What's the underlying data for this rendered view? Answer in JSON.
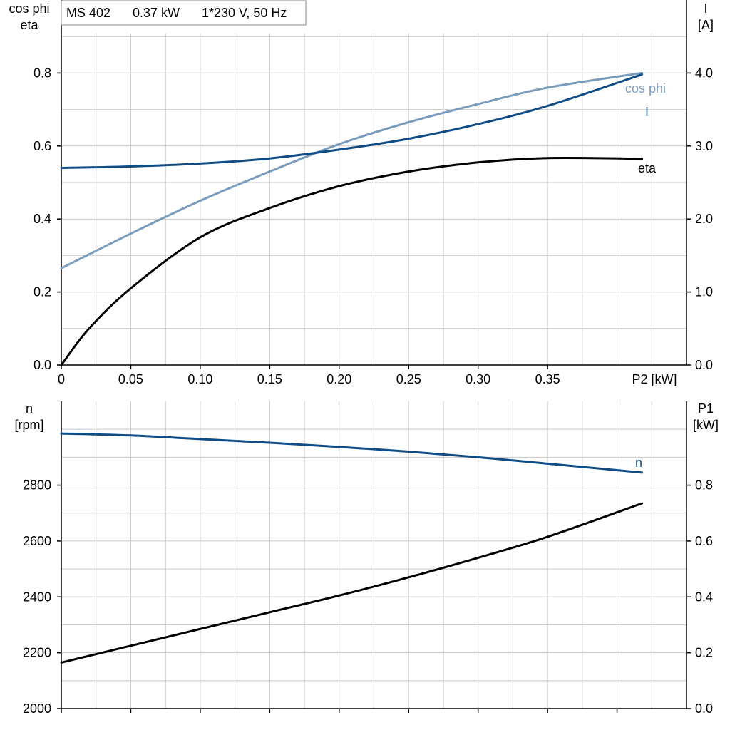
{
  "header": {
    "motor": "MS 402",
    "power": "0.37 kW",
    "supply": "1*230 V, 50 Hz"
  },
  "colors": {
    "cos_phi": "#7a9cbc",
    "current": "#0f4c86",
    "eta": "#000000",
    "speed": "#0f4c86",
    "p1": "#000000"
  },
  "chart_data": [
    {
      "type": "line",
      "name": "upper",
      "left_axis": {
        "label_lines": [
          "cos phi",
          "eta"
        ],
        "ylim": [
          0,
          1.0
        ],
        "ticks": [
          0.0,
          0.2,
          0.4,
          0.6,
          0.8
        ],
        "tick_labels": [
          "0.0",
          "0.2",
          "0.4",
          "0.6",
          "0.8"
        ]
      },
      "right_axis": {
        "label_lines": [
          "I",
          "[A]"
        ],
        "ylim": [
          0,
          5.0
        ],
        "ticks": [
          0,
          1,
          2,
          3,
          4
        ],
        "tick_labels": [
          "0.0",
          "1.0",
          "2.0",
          "3.0",
          "4.0"
        ]
      },
      "x_axis": {
        "label": "P2 [kW]",
        "xlim": [
          0,
          0.45
        ],
        "ticks": [
          0,
          0.05,
          0.1,
          0.15,
          0.2,
          0.25,
          0.3,
          0.35
        ],
        "tick_labels": [
          "0",
          "0.05",
          "0.10",
          "0.15",
          "0.20",
          "0.25",
          "0.30",
          "0.35"
        ]
      },
      "grid": true,
      "series": [
        {
          "name": "cos phi",
          "axis": "left",
          "color_key": "cos_phi",
          "x": [
            0,
            0.05,
            0.1,
            0.15,
            0.2,
            0.25,
            0.3,
            0.35,
            0.418
          ],
          "y": [
            0.265,
            0.36,
            0.45,
            0.53,
            0.605,
            0.665,
            0.715,
            0.76,
            0.8
          ]
        },
        {
          "name": "I",
          "axis": "right",
          "color_key": "current",
          "x": [
            0,
            0.05,
            0.1,
            0.15,
            0.2,
            0.25,
            0.3,
            0.35,
            0.418
          ],
          "y": [
            2.7,
            2.72,
            2.76,
            2.83,
            2.95,
            3.1,
            3.3,
            3.55,
            3.98
          ]
        },
        {
          "name": "eta",
          "axis": "left",
          "color_key": "eta",
          "x": [
            0,
            0.02,
            0.05,
            0.1,
            0.15,
            0.2,
            0.25,
            0.3,
            0.35,
            0.418
          ],
          "y": [
            0.0,
            0.1,
            0.21,
            0.35,
            0.43,
            0.49,
            0.53,
            0.555,
            0.567,
            0.565
          ]
        }
      ]
    },
    {
      "type": "line",
      "name": "lower",
      "left_axis": {
        "label_lines": [
          "n",
          "[rpm]"
        ],
        "ylim": [
          2000,
          3100
        ],
        "ticks": [
          2000,
          2200,
          2400,
          2600,
          2800
        ],
        "tick_labels": [
          "2000",
          "2200",
          "2400",
          "2600",
          "2800"
        ]
      },
      "right_axis": {
        "label_lines": [
          "P1",
          "[kW]"
        ],
        "ylim": [
          0,
          1.1
        ],
        "ticks": [
          0,
          0.2,
          0.4,
          0.6,
          0.8
        ],
        "tick_labels": [
          "0.0",
          "0.2",
          "0.4",
          "0.6",
          "0.8"
        ]
      },
      "x_axis": {
        "xlim": [
          0,
          0.45
        ],
        "ticks": [
          0,
          0.05,
          0.1,
          0.15,
          0.2,
          0.25,
          0.3,
          0.35,
          0.4
        ]
      },
      "grid": true,
      "series": [
        {
          "name": "n",
          "axis": "left",
          "color_key": "speed",
          "x": [
            0,
            0.05,
            0.1,
            0.15,
            0.2,
            0.25,
            0.3,
            0.35,
            0.418
          ],
          "y": [
            2985,
            2978,
            2965,
            2952,
            2937,
            2920,
            2900,
            2877,
            2845
          ]
        },
        {
          "name": "",
          "axis": "right",
          "color_key": "p1",
          "x": [
            0,
            0.05,
            0.1,
            0.15,
            0.2,
            0.25,
            0.3,
            0.35,
            0.418
          ],
          "y": [
            0.165,
            0.225,
            0.285,
            0.345,
            0.405,
            0.47,
            0.54,
            0.615,
            0.735
          ]
        }
      ]
    }
  ]
}
